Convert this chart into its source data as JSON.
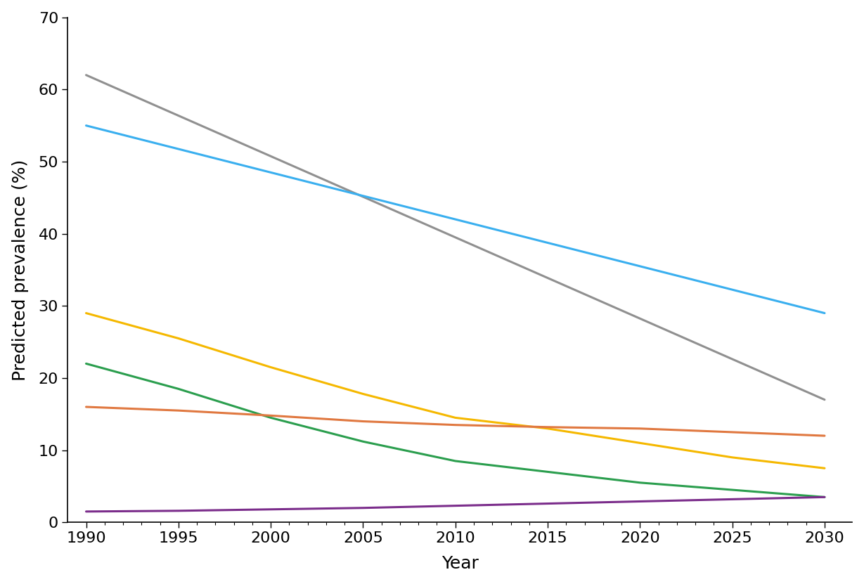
{
  "lines": [
    {
      "color": "#909090",
      "x": [
        1990,
        2030
      ],
      "y": [
        62,
        17
      ],
      "lw": 2.2
    },
    {
      "color": "#3AAFEF",
      "x": [
        1990,
        2030
      ],
      "y": [
        55,
        29
      ],
      "lw": 2.2
    },
    {
      "color": "#F5B800",
      "x": [
        1990,
        1995,
        2000,
        2005,
        2010,
        2015,
        2020,
        2025,
        2030
      ],
      "y": [
        29,
        25.5,
        21.5,
        17.8,
        14.5,
        13.0,
        11.0,
        9.0,
        7.5
      ],
      "lw": 2.2
    },
    {
      "color": "#2B9E4E",
      "x": [
        1990,
        1995,
        2000,
        2005,
        2010,
        2015,
        2020,
        2025,
        2030
      ],
      "y": [
        22,
        18.5,
        14.5,
        11.2,
        8.5,
        7.0,
        5.5,
        4.5,
        3.5
      ],
      "lw": 2.2
    },
    {
      "color": "#E07840",
      "x": [
        1990,
        1995,
        2000,
        2005,
        2010,
        2015,
        2020,
        2025,
        2030
      ],
      "y": [
        16.0,
        15.5,
        14.8,
        14.0,
        13.5,
        13.2,
        13.0,
        12.5,
        12.0
      ],
      "lw": 2.2
    },
    {
      "color": "#7B2D8B",
      "x": [
        1990,
        1995,
        2000,
        2005,
        2010,
        2015,
        2020,
        2025,
        2030
      ],
      "y": [
        1.5,
        1.6,
        1.8,
        2.0,
        2.3,
        2.6,
        2.9,
        3.2,
        3.5
      ],
      "lw": 2.2
    }
  ],
  "xlim": [
    1989,
    2031.5
  ],
  "ylim": [
    0,
    70
  ],
  "xticks": [
    1990,
    1995,
    2000,
    2005,
    2010,
    2015,
    2020,
    2025,
    2030
  ],
  "yticks": [
    0,
    10,
    20,
    30,
    40,
    50,
    60,
    70
  ],
  "xlabel": "Year",
  "ylabel": "Predicted prevalence (%)",
  "xlabel_fontsize": 18,
  "ylabel_fontsize": 18,
  "tick_fontsize": 16,
  "background_color": "#ffffff"
}
